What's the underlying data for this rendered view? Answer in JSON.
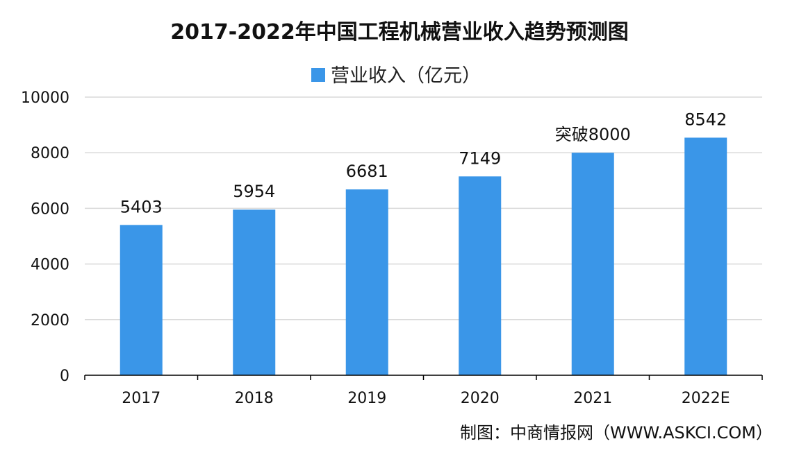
{
  "chart_data": {
    "type": "bar",
    "title": "2017-2022年中国工程机械营业收入趋势预测图",
    "categories": [
      "2017",
      "2018",
      "2019",
      "2020",
      "2021",
      "2022E"
    ],
    "series": [
      {
        "name": "营业收入（亿元）",
        "values": [
          5403,
          5954,
          6681,
          7149,
          8000,
          8542
        ],
        "data_labels": [
          "5403",
          "5954",
          "6681",
          "7149",
          "突破8000",
          "8542"
        ],
        "color": "#3a96e8"
      }
    ],
    "ylim": [
      0,
      10000
    ],
    "yticks": [
      0,
      2000,
      4000,
      6000,
      8000,
      10000
    ],
    "grid": true,
    "legend_position": "top-center",
    "source": "制图：中商情报网（WWW.ASKCI.COM）"
  }
}
